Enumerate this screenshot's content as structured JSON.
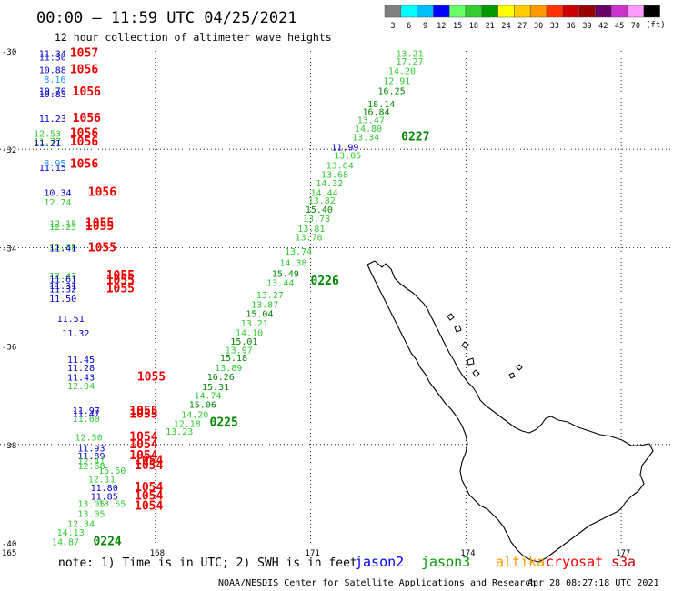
{
  "header": {
    "title": "00:00 – 11:59 UTC 04/25/2021",
    "subtitle": "12 hour collection of altimeter wave heights"
  },
  "legend": {
    "unit": "(ft)",
    "swatches": [
      {
        "label": "3",
        "color": "#808080"
      },
      {
        "label": "6",
        "color": "#00ffff"
      },
      {
        "label": "9",
        "color": "#00bfff"
      },
      {
        "label": "12",
        "color": "#0000ff"
      },
      {
        "label": "15",
        "color": "#66ff66"
      },
      {
        "label": "18",
        "color": "#33cc33"
      },
      {
        "label": "21",
        "color": "#009900"
      },
      {
        "label": "24",
        "color": "#ffff00"
      },
      {
        "label": "27",
        "color": "#ffcc00"
      },
      {
        "label": "30",
        "color": "#ff9900"
      },
      {
        "label": "33",
        "color": "#ff3300"
      },
      {
        "label": "36",
        "color": "#cc0000"
      },
      {
        "label": "39",
        "color": "#990000"
      },
      {
        "label": "42",
        "color": "#660066"
      },
      {
        "label": "45",
        "color": "#cc33cc"
      },
      {
        "label": "70",
        "color": "#ff99ff"
      },
      {
        "label": "",
        "color": "#000000"
      }
    ]
  },
  "map": {
    "lat_ticks": [
      "-30",
      "-32",
      "-34",
      "-36",
      "-38",
      "-40"
    ],
    "lon_ticks": [
      "165",
      "168",
      "171",
      "174",
      "177"
    ]
  },
  "footer": {
    "note": "note: 1) Time is in UTC; 2) SWH is in feet",
    "credit": "NOAA/NESDIS Center for Satellite Applications and Research",
    "generated": "Apr 28 08:27:18 UTC 2021"
  },
  "satellites": [
    {
      "name": "jason2",
      "color": "#0000ff"
    },
    {
      "name": "jason3",
      "color": "#009900"
    },
    {
      "name": "altika",
      "color": "#ff9900"
    },
    {
      "name": "cryosat",
      "color": "#ff0000"
    },
    {
      "name": "s3a",
      "color": "#cc0000"
    }
  ],
  "palette": {
    "blue": "#0000cc",
    "lightblue": "#1e90ff",
    "green": "#33cc33",
    "darkgreen": "#008800",
    "red": "#ee0000"
  },
  "readings": [
    {
      "text": "11.34",
      "c": "blue",
      "lat": -30.05,
      "lon": 165.75
    },
    {
      "text": "11.30",
      "c": "blue",
      "lat": -30.12,
      "lon": 165.75
    },
    {
      "text": "1057",
      "c": "red",
      "lat": -30.05,
      "lon": 166.35
    },
    {
      "text": "10.88",
      "c": "blue",
      "lat": -30.38,
      "lon": 165.75
    },
    {
      "text": "1056",
      "c": "red",
      "lat": -30.38,
      "lon": 166.35
    },
    {
      "text": "8.16",
      "c": "lightblue",
      "lat": -30.57,
      "lon": 165.85
    },
    {
      "text": "10.70",
      "c": "blue",
      "lat": -30.8,
      "lon": 165.75
    },
    {
      "text": "10.83",
      "c": "blue",
      "lat": -30.87,
      "lon": 165.75
    },
    {
      "text": "1056",
      "c": "red",
      "lat": -30.83,
      "lon": 166.4
    },
    {
      "text": "11.23",
      "c": "blue",
      "lat": -31.37,
      "lon": 165.75
    },
    {
      "text": "1056",
      "c": "red",
      "lat": -31.37,
      "lon": 166.4
    },
    {
      "text": "12.53",
      "c": "green",
      "lat": -31.67,
      "lon": 165.65
    },
    {
      "text": "1056",
      "c": "red",
      "lat": -31.67,
      "lon": 166.35
    },
    {
      "text": "11.77",
      "c": "green",
      "lat": -31.83,
      "lon": 165.65
    },
    {
      "text": "11.21",
      "c": "blue",
      "lat": -31.87,
      "lon": 165.65
    },
    {
      "text": "1056",
      "c": "red",
      "lat": -31.85,
      "lon": 166.35
    },
    {
      "text": "8.95",
      "c": "lightblue",
      "lat": -32.27,
      "lon": 165.85
    },
    {
      "text": "11.15",
      "c": "blue",
      "lat": -32.37,
      "lon": 165.75
    },
    {
      "text": "1056",
      "c": "red",
      "lat": -32.3,
      "lon": 166.35
    },
    {
      "text": "10.34",
      "c": "blue",
      "lat": -32.87,
      "lon": 165.85
    },
    {
      "text": "1056",
      "c": "red",
      "lat": -32.87,
      "lon": 166.7
    },
    {
      "text": "12.74",
      "c": "green",
      "lat": -33.07,
      "lon": 165.85
    },
    {
      "text": "12.15",
      "c": "green",
      "lat": -33.5,
      "lon": 165.95
    },
    {
      "text": "12.23",
      "c": "green",
      "lat": -33.57,
      "lon": 165.95
    },
    {
      "text": "1055",
      "c": "red",
      "lat": -33.5,
      "lon": 166.65
    },
    {
      "text": "1055",
      "c": "red",
      "lat": -33.57,
      "lon": 166.65
    },
    {
      "text": "12.88",
      "c": "green",
      "lat": -33.97,
      "lon": 165.95
    },
    {
      "text": "11.41",
      "c": "blue",
      "lat": -34.0,
      "lon": 165.95
    },
    {
      "text": "1055",
      "c": "red",
      "lat": -34.0,
      "lon": 166.7
    },
    {
      "text": "12.47",
      "c": "green",
      "lat": -34.57,
      "lon": 165.95
    },
    {
      "text": "11.61",
      "c": "blue",
      "lat": -34.63,
      "lon": 165.95
    },
    {
      "text": "1055",
      "c": "red",
      "lat": -34.57,
      "lon": 167.05
    },
    {
      "text": "1055",
      "c": "red",
      "lat": -34.67,
      "lon": 167.05
    },
    {
      "text": "11.31",
      "c": "blue",
      "lat": -34.77,
      "lon": 165.95
    },
    {
      "text": "11.32",
      "c": "blue",
      "lat": -34.83,
      "lon": 165.95
    },
    {
      "text": "1055",
      "c": "red",
      "lat": -34.83,
      "lon": 167.05
    },
    {
      "text": "11.50",
      "c": "blue",
      "lat": -35.03,
      "lon": 165.95
    },
    {
      "text": "11.51",
      "c": "blue",
      "lat": -35.43,
      "lon": 166.1
    },
    {
      "text": "11.32",
      "c": "blue",
      "lat": -35.73,
      "lon": 166.2
    },
    {
      "text": "11.45",
      "c": "blue",
      "lat": -36.27,
      "lon": 166.3
    },
    {
      "text": "11.28",
      "c": "blue",
      "lat": -36.43,
      "lon": 166.3
    },
    {
      "text": "11.43",
      "c": "blue",
      "lat": -36.63,
      "lon": 166.3
    },
    {
      "text": "1055",
      "c": "red",
      "lat": -36.63,
      "lon": 167.65
    },
    {
      "text": "12.04",
      "c": "green",
      "lat": -36.8,
      "lon": 166.3
    },
    {
      "text": "11.97",
      "c": "blue",
      "lat": -37.3,
      "lon": 166.4
    },
    {
      "text": "11.47",
      "c": "blue",
      "lat": -37.37,
      "lon": 166.4
    },
    {
      "text": "1055",
      "c": "red",
      "lat": -37.32,
      "lon": 167.5
    },
    {
      "text": "1055",
      "c": "red",
      "lat": -37.38,
      "lon": 167.5
    },
    {
      "text": "11.60",
      "c": "green",
      "lat": -37.47,
      "lon": 166.4
    },
    {
      "text": "12.50",
      "c": "green",
      "lat": -37.85,
      "lon": 166.45
    },
    {
      "text": "1054",
      "c": "red",
      "lat": -37.85,
      "lon": 167.5
    },
    {
      "text": "1054",
      "c": "red",
      "lat": -38.0,
      "lon": 167.5
    },
    {
      "text": "11.93",
      "c": "blue",
      "lat": -38.07,
      "lon": 166.5
    },
    {
      "text": "11.89",
      "c": "blue",
      "lat": -38.23,
      "lon": 166.5
    },
    {
      "text": "1054",
      "c": "red",
      "lat": -38.23,
      "lon": 167.5
    },
    {
      "text": "1054",
      "c": "red",
      "lat": -38.33,
      "lon": 167.6
    },
    {
      "text": "1054",
      "c": "red",
      "lat": -38.43,
      "lon": 167.6
    },
    {
      "text": "12.41",
      "c": "green",
      "lat": -38.33,
      "lon": 166.5
    },
    {
      "text": "12.68",
      "c": "green",
      "lat": -38.43,
      "lon": 166.5
    },
    {
      "text": "15.60",
      "c": "green",
      "lat": -38.52,
      "lon": 166.9
    },
    {
      "text": "12.11",
      "c": "green",
      "lat": -38.7,
      "lon": 166.7
    },
    {
      "text": "11.80",
      "c": "blue",
      "lat": -38.87,
      "lon": 166.75
    },
    {
      "text": "1054",
      "c": "red",
      "lat": -38.87,
      "lon": 167.6
    },
    {
      "text": "11.85",
      "c": "blue",
      "lat": -39.05,
      "lon": 166.75
    },
    {
      "text": "1054",
      "c": "red",
      "lat": -39.05,
      "lon": 167.6
    },
    {
      "text": "13.05",
      "c": "green",
      "lat": -39.2,
      "lon": 166.5
    },
    {
      "text": "13.65",
      "c": "green",
      "lat": -39.2,
      "lon": 166.9
    },
    {
      "text": "1054",
      "c": "red",
      "lat": -39.25,
      "lon": 167.6
    },
    {
      "text": "13.05",
      "c": "green",
      "lat": -39.4,
      "lon": 166.5
    },
    {
      "text": "12.34",
      "c": "green",
      "lat": -39.6,
      "lon": 166.3
    },
    {
      "text": "14.13",
      "c": "green",
      "lat": -39.78,
      "lon": 166.1
    },
    {
      "text": "14.87",
      "c": "green",
      "lat": -39.97,
      "lon": 166.0
    },
    {
      "text": "0224",
      "c": "darkgreen",
      "lat": -39.97,
      "lon": 166.8
    },
    {
      "text": "13.21",
      "c": "green",
      "lat": -30.05,
      "lon": 172.65
    },
    {
      "text": "17.27",
      "c": "green",
      "lat": -30.2,
      "lon": 172.65
    },
    {
      "text": "14.20",
      "c": "green",
      "lat": -30.4,
      "lon": 172.5
    },
    {
      "text": "12.91",
      "c": "green",
      "lat": -30.6,
      "lon": 172.4
    },
    {
      "text": "16.25",
      "c": "darkgreen",
      "lat": -30.8,
      "lon": 172.3
    },
    {
      "text": "18.14",
      "c": "darkgreen",
      "lat": -31.07,
      "lon": 172.1
    },
    {
      "text": "16.84",
      "c": "darkgreen",
      "lat": -31.23,
      "lon": 172.0
    },
    {
      "text": "13.47",
      "c": "green",
      "lat": -31.4,
      "lon": 171.9
    },
    {
      "text": "14.80",
      "c": "green",
      "lat": -31.57,
      "lon": 171.85
    },
    {
      "text": "13.34",
      "c": "green",
      "lat": -31.75,
      "lon": 171.8
    },
    {
      "text": "0227",
      "c": "darkgreen",
      "lat": -31.75,
      "lon": 172.75
    },
    {
      "text": "11.99",
      "c": "blue",
      "lat": -31.95,
      "lon": 171.4
    },
    {
      "text": "13.05",
      "c": "green",
      "lat": -32.12,
      "lon": 171.45
    },
    {
      "text": "13.64",
      "c": "green",
      "lat": -32.32,
      "lon": 171.3
    },
    {
      "text": "13.68",
      "c": "green",
      "lat": -32.5,
      "lon": 171.2
    },
    {
      "text": "14.32",
      "c": "green",
      "lat": -32.68,
      "lon": 171.1
    },
    {
      "text": "14.44",
      "c": "green",
      "lat": -32.87,
      "lon": 171.0
    },
    {
      "text": "13.82",
      "c": "green",
      "lat": -33.03,
      "lon": 170.95
    },
    {
      "text": "15.40",
      "c": "darkgreen",
      "lat": -33.22,
      "lon": 170.9
    },
    {
      "text": "13.78",
      "c": "green",
      "lat": -33.4,
      "lon": 170.85
    },
    {
      "text": "13.81",
      "c": "green",
      "lat": -33.6,
      "lon": 170.75
    },
    {
      "text": "13.78",
      "c": "green",
      "lat": -33.78,
      "lon": 170.7
    },
    {
      "text": "13.74",
      "c": "green",
      "lat": -34.07,
      "lon": 170.5
    },
    {
      "text": "14.38",
      "c": "green",
      "lat": -34.3,
      "lon": 170.4
    },
    {
      "text": "15.49",
      "c": "darkgreen",
      "lat": -34.52,
      "lon": 170.25
    },
    {
      "text": "13.44",
      "c": "green",
      "lat": -34.7,
      "lon": 170.15
    },
    {
      "text": "0226",
      "c": "darkgreen",
      "lat": -34.68,
      "lon": 171.0
    },
    {
      "text": "13.27",
      "c": "green",
      "lat": -34.95,
      "lon": 169.95
    },
    {
      "text": "13.87",
      "c": "green",
      "lat": -35.15,
      "lon": 169.85
    },
    {
      "text": "15.04",
      "c": "darkgreen",
      "lat": -35.33,
      "lon": 169.75
    },
    {
      "text": "13.21",
      "c": "green",
      "lat": -35.53,
      "lon": 169.65
    },
    {
      "text": "14.10",
      "c": "green",
      "lat": -35.72,
      "lon": 169.55
    },
    {
      "text": "15.01",
      "c": "darkgreen",
      "lat": -35.9,
      "lon": 169.45
    },
    {
      "text": "13.97",
      "c": "green",
      "lat": -36.07,
      "lon": 169.35
    },
    {
      "text": "15.18",
      "c": "darkgreen",
      "lat": -36.23,
      "lon": 169.25
    },
    {
      "text": "13.89",
      "c": "green",
      "lat": -36.43,
      "lon": 169.15
    },
    {
      "text": "16.26",
      "c": "darkgreen",
      "lat": -36.62,
      "lon": 169.0
    },
    {
      "text": "15.31",
      "c": "darkgreen",
      "lat": -36.82,
      "lon": 168.9
    },
    {
      "text": "14.74",
      "c": "green",
      "lat": -37.0,
      "lon": 168.75
    },
    {
      "text": "15.06",
      "c": "darkgreen",
      "lat": -37.18,
      "lon": 168.65
    },
    {
      "text": "14.20",
      "c": "green",
      "lat": -37.38,
      "lon": 168.5
    },
    {
      "text": "0225",
      "c": "darkgreen",
      "lat": -37.55,
      "lon": 169.05
    },
    {
      "text": "12.18",
      "c": "green",
      "lat": -37.57,
      "lon": 168.35
    },
    {
      "text": "13.23",
      "c": "green",
      "lat": -37.73,
      "lon": 168.2
    }
  ]
}
